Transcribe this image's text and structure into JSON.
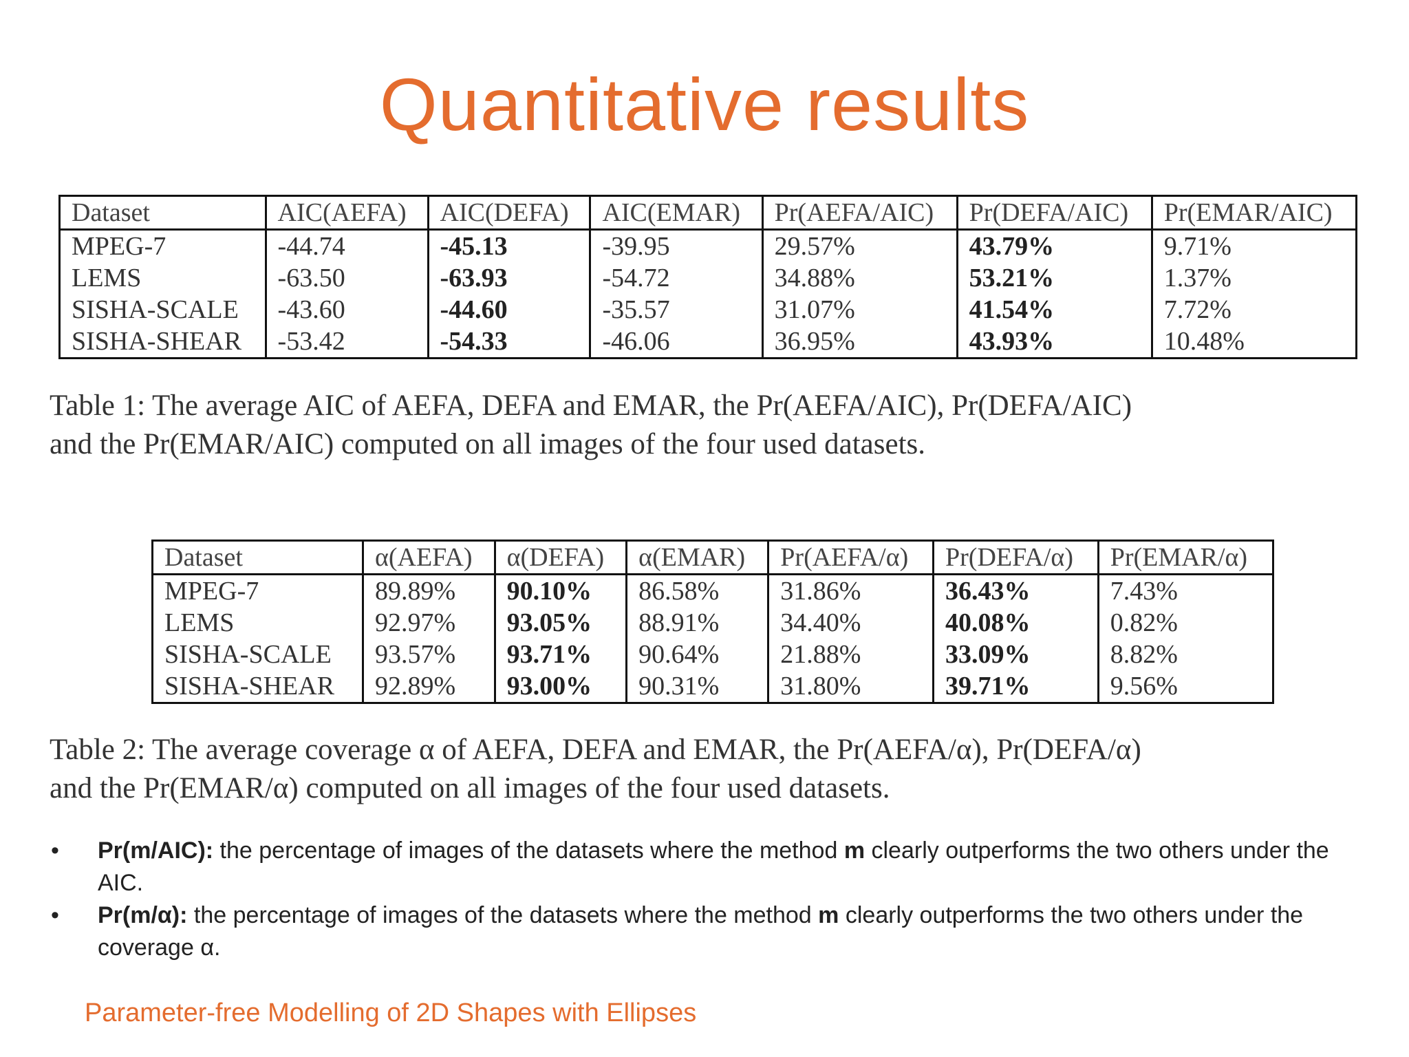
{
  "slide": {
    "title": "Quantitative results",
    "footer": "Parameter-free Modelling of 2D Shapes with Ellipses",
    "accent_color": "#E46C2E"
  },
  "table1": {
    "headers": [
      "Dataset",
      "AIC(AEFA)",
      "AIC(DEFA)",
      "AIC(EMAR)",
      "Pr(AEFA/AIC)",
      "Pr(DEFA/AIC)",
      "Pr(EMAR/AIC)"
    ],
    "rows": [
      [
        "MPEG-7",
        "-44.74",
        "-45.13",
        "-39.95",
        "29.57%",
        "43.79%",
        "9.71%"
      ],
      [
        "LEMS",
        "-63.50",
        "-63.93",
        "-54.72",
        "34.88%",
        "53.21%",
        "1.37%"
      ],
      [
        "SISHA-SCALE",
        "-43.60",
        "-44.60",
        "-35.57",
        "31.07%",
        "41.54%",
        "7.72%"
      ],
      [
        "SISHA-SHEAR",
        "-53.42",
        "-54.33",
        "-46.06",
        "36.95%",
        "43.93%",
        "10.48%"
      ]
    ],
    "bold_columns": [
      2,
      5
    ]
  },
  "caption1": {
    "line1": "Table 1: The average AIC of AEFA, DEFA and EMAR, the Pr(AEFA/AIC), Pr(DEFA/AIC)",
    "line2": "and the Pr(EMAR/AIC) computed on all images of the four used datasets."
  },
  "table2": {
    "headers": [
      "Dataset",
      "α(AEFA)",
      "α(DEFA)",
      "α(EMAR)",
      "Pr(AEFA/α)",
      "Pr(DEFA/α)",
      "Pr(EMAR/α)"
    ],
    "rows": [
      [
        "MPEG-7",
        "89.89%",
        "90.10%",
        "86.58%",
        "31.86%",
        "36.43%",
        "7.43%"
      ],
      [
        "LEMS",
        "92.97%",
        "93.05%",
        "88.91%",
        "34.40%",
        "40.08%",
        "0.82%"
      ],
      [
        "SISHA-SCALE",
        "93.57%",
        "93.71%",
        "90.64%",
        "21.88%",
        "33.09%",
        "8.82%"
      ],
      [
        "SISHA-SHEAR",
        "92.89%",
        "93.00%",
        "90.31%",
        "31.80%",
        "39.71%",
        "9.56%"
      ]
    ],
    "bold_columns": [
      2,
      5
    ]
  },
  "caption2": {
    "line1": "Table 2: The average coverage α of AEFA, DEFA and EMAR, the Pr(AEFA/α), Pr(DEFA/α)",
    "line2": "and the Pr(EMAR/α) computed on all images of the four used datasets."
  },
  "bullets": [
    {
      "marker": "•",
      "term": "Pr(m/AIC):",
      "text_before": " the percentage of images of the datasets where the method ",
      "emph": "m",
      "text_after": " clearly outperforms the two others under the AIC."
    },
    {
      "marker": "•",
      "term": "Pr(m/α):",
      "text_before": " the percentage of images of the datasets where the method ",
      "emph": "m",
      "text_after": " clearly outperforms the two others under the coverage α."
    }
  ]
}
